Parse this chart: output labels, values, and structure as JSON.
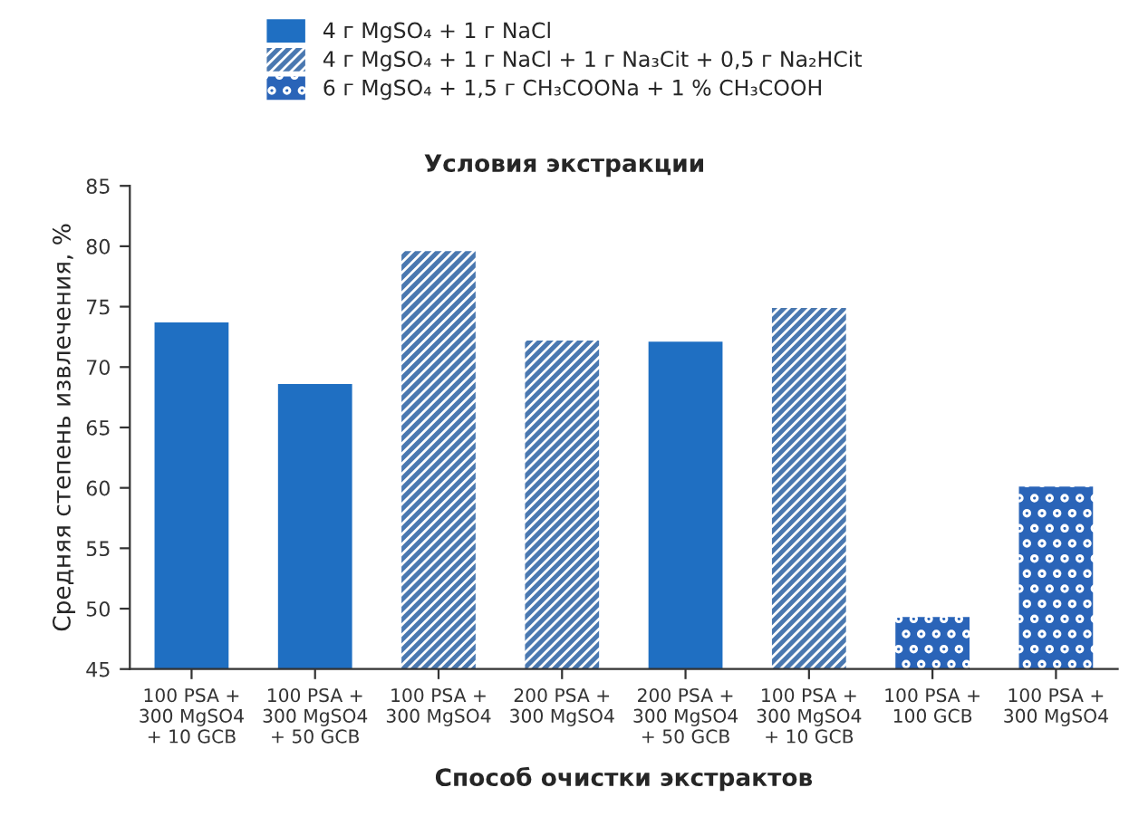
{
  "chart_data": {
    "type": "bar",
    "legend_title": "Условия экстракции",
    "xlabel": "Способ очистки экстрактов",
    "ylabel": "Средняя степень извлечения, %",
    "categories": [
      "100 PSA +\n300 MgSO4\n+ 10 GCB",
      "100 PSA +\n300 MgSO4\n+ 50 GCB",
      "100 PSA +\n300 MgSO4",
      "200 PSA +\n300 MgSO4",
      "200 PSA +\n300 MgSO4\n+ 50 GCB",
      "100 PSA +\n300 MgSO4\n+ 10 GCB",
      "100 PSA +\n100 GCB",
      "100 PSA +\n300 MgSO4"
    ],
    "series": [
      {
        "name": "4 г MgSO₄ + 1 г NaCl",
        "color": "#1f6fc2",
        "values": [
          73.7,
          68.6,
          null,
          null,
          72.1,
          null,
          null,
          null
        ]
      },
      {
        "name": "4 г MgSO₄ + 1 г NaCl + 1 г Na₃Cit + 0,5 г Na₂HCit",
        "color": "#4a78b0",
        "values": [
          null,
          null,
          79.6,
          72.2,
          null,
          74.9,
          null,
          null
        ]
      },
      {
        "name": "6 г MgSO₄ + 1,5 г CH₃COONa + 1 % CH₃COOH",
        "color": "#2a64b8",
        "values": [
          null,
          null,
          null,
          null,
          null,
          null,
          49.3,
          60.1
        ]
      }
    ],
    "ylim": [
      45,
      85
    ],
    "yticks": [
      45,
      50,
      55,
      60,
      65,
      70,
      75,
      80,
      85
    ],
    "legend": "top",
    "grid": false
  }
}
